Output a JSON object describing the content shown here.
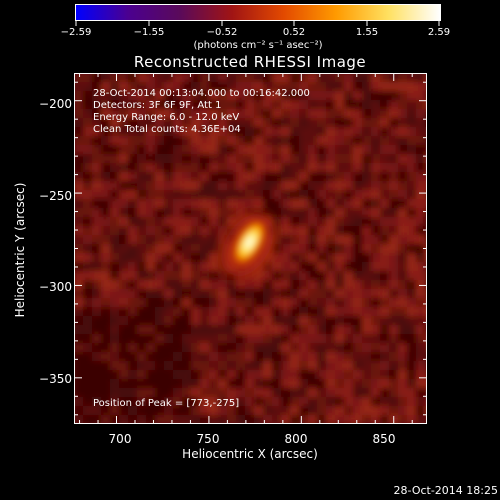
{
  "colorbar": {
    "tick_labels": [
      "−2.59",
      "−1.55",
      "−0.52",
      "0.52",
      "1.55",
      "2.59"
    ],
    "title": "(photons cm⁻² s⁻¹ asec⁻²)",
    "min": -2.59,
    "max": 2.59,
    "colormap": [
      "#0000ff",
      "#4b0090",
      "#5a0a5a",
      "#a01414",
      "#e34a00",
      "#ff9a00",
      "#ffe060",
      "#ffffff"
    ]
  },
  "title": "Reconstructed RHESSI Image",
  "info": {
    "line1": "28-Oct-2014 00:13:04.000 to 00:16:42.000",
    "line2": "Detectors: 3F 6F 9F, Att 1",
    "line3": "Energy Range: 6.0 - 12.0 keV",
    "line4": "Clean     Total counts: 4.36E+04",
    "peak": "Position of Peak = [773,-275]"
  },
  "axes": {
    "xlabel": "Heliocentric X (arcsec)",
    "ylabel": "Heliocentric Y (arcsec)",
    "xlim": [
      677,
      868
    ],
    "ylim": [
      -375,
      -185
    ],
    "xtick_labels": [
      "700",
      "750",
      "800",
      "850"
    ],
    "ytick_labels": [
      "−200",
      "−250",
      "−300",
      "−350"
    ]
  },
  "image": {
    "peak_x": 773,
    "peak_y": -275
  },
  "timestamp": "28-Oct-2014 18:25"
}
